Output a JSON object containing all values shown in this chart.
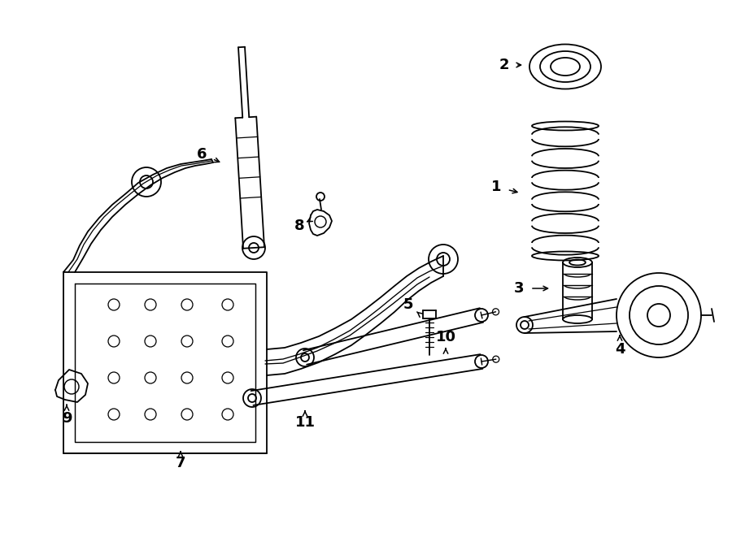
{
  "bg_color": "#ffffff",
  "line_color": "#000000",
  "figsize": [
    9.0,
    6.61
  ],
  "dpi": 100,
  "lw": 1.3
}
